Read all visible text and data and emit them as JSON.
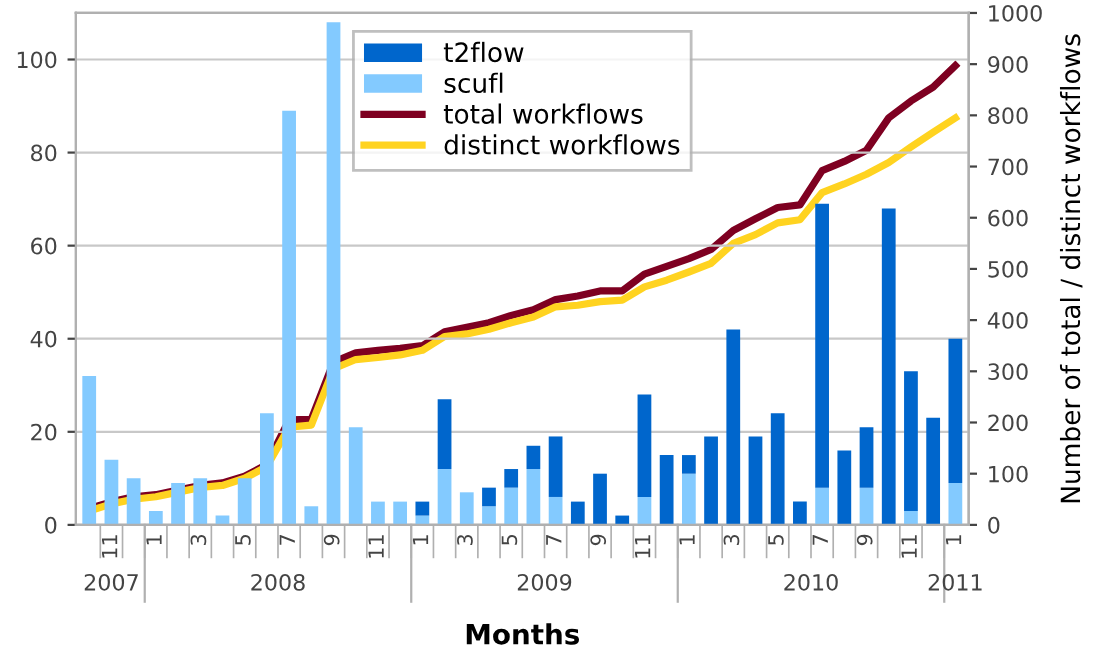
{
  "chart_data": {
    "type": "bar",
    "stacked": true,
    "xlabel": "Months",
    "y2label": "Number of total / distinct workflows",
    "categories": [
      null,
      "11",
      null,
      "1",
      null,
      "3",
      null,
      "5",
      null,
      "7",
      null,
      "9",
      null,
      "11",
      null,
      "1",
      null,
      "3",
      null,
      "5",
      null,
      "7",
      null,
      "9",
      null,
      "11",
      null,
      "1",
      null,
      "3",
      null,
      "5",
      null,
      "7",
      null,
      "9",
      null,
      "11",
      null,
      "1"
    ],
    "series": [
      {
        "name": "scufl",
        "color": "#83caff",
        "values": [
          32,
          14,
          10,
          3,
          9,
          10,
          2,
          10,
          24,
          89,
          4,
          108,
          21,
          5,
          5,
          2,
          12,
          7,
          4,
          8,
          12,
          6,
          0,
          0,
          0,
          6,
          0,
          11,
          0,
          0,
          0,
          0,
          0,
          8,
          0,
          8,
          0,
          3,
          0,
          9
        ]
      },
      {
        "name": "t2flow",
        "color": "#0066cc",
        "values": [
          0,
          0,
          0,
          0,
          0,
          0,
          0,
          0,
          0,
          0,
          0,
          0,
          0,
          0,
          0,
          3,
          15,
          0,
          4,
          4,
          5,
          13,
          5,
          11,
          2,
          22,
          15,
          4,
          19,
          42,
          19,
          24,
          5,
          61,
          16,
          13,
          68,
          30,
          23,
          31
        ]
      },
      {
        "name": "total workflows",
        "type": "line",
        "axis": "y2",
        "color": "#7e0021",
        "values": [
          32,
          45,
          55,
          59,
          68,
          77,
          82,
          95,
          118,
          205,
          206,
          318,
          336,
          341,
          345,
          350,
          377,
          386,
          395,
          409,
          420,
          440,
          447,
          457,
          457,
          490,
          505,
          520,
          538,
          575,
          598,
          620,
          625,
          692,
          710,
          732,
          795,
          828,
          855,
          897
        ]
      },
      {
        "name": "distinct workflows",
        "type": "line",
        "axis": "y2",
        "color": "#ffd320",
        "values": [
          27,
          41,
          50,
          55,
          64,
          73,
          77,
          91,
          114,
          191,
          195,
          305,
          323,
          327,
          332,
          341,
          368,
          373,
          382,
          395,
          406,
          426,
          429,
          436,
          439,
          465,
          478,
          494,
          511,
          550,
          567,
          590,
          596,
          649,
          666,
          685,
          708,
          738,
          767,
          795
        ]
      }
    ],
    "ylim": [
      0,
      110
    ],
    "yticks": [
      0,
      20,
      40,
      60,
      80,
      100
    ],
    "y2lim": [
      0,
      1000
    ],
    "y2ticks": [
      0,
      100,
      200,
      300,
      400,
      500,
      600,
      700,
      800,
      900,
      1000
    ],
    "grid": "y",
    "legend": "top",
    "line_style": "solid",
    "marker": "none",
    "annotations": [
      "2007",
      "2008",
      "2009",
      "2010",
      "2011"
    ]
  }
}
